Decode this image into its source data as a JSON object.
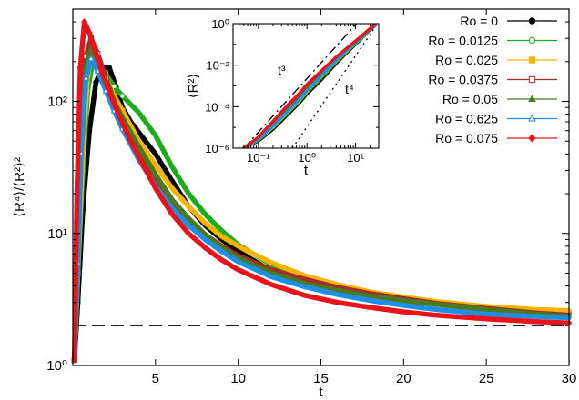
{
  "chart_data": [
    {
      "type": "line",
      "ylabel": "⟨R⁴⟩/⟨R²⟩²",
      "xlabel": "t",
      "xlim": [
        0,
        30
      ],
      "ylim": [
        1,
        500
      ],
      "yscale": "log",
      "xticks": [
        5,
        10,
        15,
        20,
        25,
        30
      ],
      "xtick_labels": [
        "5",
        "10",
        "15",
        "20",
        "25",
        "30"
      ],
      "yticks": [
        1,
        10,
        100
      ],
      "ytick_labels": [
        "10⁰",
        "10¹",
        "10²"
      ],
      "grid": false,
      "legend_placement": "top-right",
      "reference_line": {
        "y": 2,
        "style": "dashed"
      },
      "series": [
        {
          "name": "Ro = 0",
          "color": "#000000",
          "marker": "filled-circle",
          "x": [
            0.1,
            0.3,
            0.6,
            1.0,
            1.4,
            1.8,
            2.2,
            2.6,
            3.0,
            3.5,
            4.0,
            4.5,
            5,
            6,
            7,
            8,
            9,
            10,
            12,
            14,
            16,
            18,
            20,
            22,
            25,
            28,
            30
          ],
          "y": [
            1.1,
            3,
            15,
            60,
            140,
            180,
            180,
            130,
            90,
            70,
            58,
            48,
            40,
            25,
            16,
            11.5,
            9,
            7.3,
            5.2,
            4.4,
            3.9,
            3.5,
            3.2,
            2.95,
            2.7,
            2.55,
            2.5
          ]
        },
        {
          "name": "Ro = 0.0125",
          "color": "#1aaf1a",
          "marker": "open-circle",
          "x": [
            0.1,
            0.3,
            0.6,
            0.9,
            1.2,
            1.6,
            2.0,
            2.5,
            3.0,
            3.5,
            4,
            5,
            6,
            7,
            8,
            9,
            10,
            12,
            14,
            16,
            18,
            20,
            22,
            25,
            28,
            30
          ],
          "y": [
            1.1,
            5,
            30,
            120,
            200,
            190,
            160,
            130,
            110,
            95,
            82,
            55,
            32,
            20,
            14,
            10.5,
            8.2,
            5.8,
            4.6,
            3.9,
            3.5,
            3.2,
            3.0,
            2.75,
            2.6,
            2.55
          ]
        },
        {
          "name": "Ro = 0.025",
          "color": "#f5b400",
          "marker": "filled-square",
          "x": [
            0.1,
            0.3,
            0.6,
            0.9,
            1.2,
            1.6,
            2.0,
            2.5,
            3.0,
            4,
            5,
            6,
            7,
            8,
            9,
            10,
            12,
            14,
            16,
            18,
            20,
            22,
            25,
            28,
            30
          ],
          "y": [
            1.1,
            5,
            40,
            160,
            240,
            200,
            150,
            110,
            85,
            50,
            33,
            22,
            16,
            12,
            9.5,
            8,
            6,
            4.8,
            4.1,
            3.6,
            3.3,
            3.05,
            2.8,
            2.65,
            2.6
          ]
        },
        {
          "name": "Ro = 0.0375",
          "color": "#a52a2a",
          "marker": "open-square",
          "x": [
            0.1,
            0.3,
            0.5,
            0.8,
            1.1,
            1.5,
            2.0,
            2.5,
            3.0,
            4,
            5,
            6,
            7,
            8,
            9,
            10,
            12,
            14,
            16,
            18,
            20,
            22,
            25,
            28,
            30
          ],
          "y": [
            1.1,
            8,
            60,
            220,
            300,
            230,
            150,
            100,
            72,
            40,
            25,
            17,
            12.5,
            9.8,
            8,
            6.8,
            5.3,
            4.5,
            3.9,
            3.5,
            3.2,
            2.95,
            2.7,
            2.5,
            2.4
          ]
        },
        {
          "name": "Ro = 0.05",
          "color": "#4b7a1e",
          "marker": "filled-triangle",
          "x": [
            0.1,
            0.3,
            0.5,
            0.8,
            1.1,
            1.5,
            2.0,
            2.5,
            3.0,
            4,
            5,
            6,
            7,
            8,
            9,
            10,
            12,
            14,
            16,
            18,
            20,
            22,
            25,
            28,
            30
          ],
          "y": [
            1.1,
            6,
            45,
            180,
            250,
            200,
            140,
            100,
            75,
            45,
            28,
            18,
            13,
            9.8,
            7.8,
            6.5,
            5,
            4.2,
            3.7,
            3.35,
            3.1,
            2.9,
            2.65,
            2.45,
            2.35
          ]
        },
        {
          "name": "Ro = 0.625",
          "color": "#1e8fe6",
          "marker": "open-triangle",
          "x": [
            0.1,
            0.3,
            0.5,
            0.8,
            1.1,
            1.5,
            2.0,
            2.5,
            3.0,
            4,
            5,
            6,
            7,
            8,
            9,
            10,
            12,
            14,
            16,
            18,
            20,
            22,
            25,
            28,
            30
          ],
          "y": [
            1.1,
            6,
            40,
            150,
            210,
            170,
            120,
            85,
            62,
            36,
            23,
            15.5,
            11.5,
            9,
            7.3,
            6.1,
            4.7,
            3.95,
            3.45,
            3.1,
            2.85,
            2.65,
            2.45,
            2.35,
            2.3
          ]
        },
        {
          "name": "Ro = 0.075",
          "color": "#e8141a",
          "marker": "filled-diamond",
          "x": [
            0.1,
            0.25,
            0.45,
            0.7,
            1.0,
            1.4,
            1.8,
            2.3,
            2.8,
            3.5,
            4,
            5,
            6,
            7,
            8,
            9,
            10,
            12,
            14,
            16,
            18,
            20,
            22,
            25,
            28,
            30
          ],
          "y": [
            1.1,
            20,
            180,
            400,
            330,
            230,
            160,
            110,
            78,
            50,
            38,
            22,
            14,
            10,
            7.8,
            6.3,
            5.3,
            4.1,
            3.4,
            3.0,
            2.75,
            2.55,
            2.4,
            2.25,
            2.15,
            2.1
          ]
        }
      ]
    },
    {
      "type": "line",
      "inset": true,
      "ylabel": "⟨R²⟩",
      "xlabel": "t",
      "xscale": "log",
      "yscale": "log",
      "xlim": [
        0.03,
        30
      ],
      "ylim": [
        1e-06,
        1
      ],
      "xticks": [
        0.1,
        1,
        10
      ],
      "xtick_labels": [
        "10⁻¹",
        "10⁰",
        "10¹"
      ],
      "yticks": [
        1e-06,
        0.0001,
        0.01,
        1
      ],
      "ytick_labels": [
        "10⁻⁶",
        "10⁻⁴",
        "10⁻²",
        "10⁰"
      ],
      "annotations": [
        "t³",
        "t⁴"
      ],
      "reference_lines": [
        {
          "label": "t³",
          "style": "dash-dot",
          "x": [
            0.05,
            12
          ],
          "y": [
            1e-06,
            1.4
          ]
        },
        {
          "label": "t⁴",
          "style": "dotted",
          "x": [
            0.5,
            30
          ],
          "y": [
            1e-06,
            1.2
          ]
        }
      ],
      "series": [
        {
          "name": "Ro = 0",
          "color": "#000000",
          "x": [
            0.05,
            0.1,
            0.2,
            0.4,
            0.7,
            1,
            2,
            4,
            7,
            12,
            20,
            25
          ],
          "y": [
            1e-06,
            2.2e-06,
            8e-06,
            4e-05,
            0.00015,
            0.0004,
            0.002,
            0.012,
            0.045,
            0.15,
            0.5,
            0.8
          ]
        },
        {
          "name": "Ro = 0.0125",
          "color": "#1aaf1a",
          "x": [
            0.05,
            0.1,
            0.2,
            0.4,
            0.7,
            1,
            2,
            4,
            7,
            12,
            20,
            25
          ],
          "y": [
            1e-06,
            2.4e-06,
            9.5e-06,
            4.8e-05,
            0.00018,
            0.00048,
            0.0025,
            0.014,
            0.05,
            0.16,
            0.52,
            0.85
          ]
        },
        {
          "name": "Ro = 0.025",
          "color": "#f5b400",
          "x": [
            0.05,
            0.1,
            0.2,
            0.4,
            0.7,
            1,
            2,
            4,
            7,
            12,
            20,
            25
          ],
          "y": [
            1e-06,
            2.6e-06,
            1e-05,
            5.5e-05,
            0.0002,
            0.00055,
            0.003,
            0.016,
            0.055,
            0.17,
            0.55,
            0.88
          ]
        },
        {
          "name": "Ro = 0.0375",
          "color": "#a52a2a",
          "x": [
            0.05,
            0.1,
            0.2,
            0.4,
            0.7,
            1,
            2,
            4,
            7,
            12,
            20,
            25
          ],
          "y": [
            1e-06,
            3e-06,
            1.4e-05,
            8e-05,
            0.0003,
            0.0008,
            0.004,
            0.02,
            0.065,
            0.19,
            0.58,
            0.9
          ]
        },
        {
          "name": "Ro = 0.05",
          "color": "#4b7a1e",
          "x": [
            0.05,
            0.1,
            0.2,
            0.4,
            0.7,
            1,
            2,
            4,
            7,
            12,
            20,
            25
          ],
          "y": [
            1e-06,
            2.8e-06,
            1.2e-05,
            7e-05,
            0.00026,
            0.0007,
            0.0035,
            0.018,
            0.06,
            0.18,
            0.56,
            0.9
          ]
        },
        {
          "name": "Ro = 0.625",
          "color": "#1e8fe6",
          "x": [
            0.05,
            0.1,
            0.2,
            0.4,
            0.7,
            1,
            2,
            4,
            7,
            12,
            20,
            25
          ],
          "y": [
            1e-06,
            2.7e-06,
            1.1e-05,
            6e-05,
            0.00022,
            0.0006,
            0.0032,
            0.017,
            0.058,
            0.175,
            0.55,
            0.88
          ]
        },
        {
          "name": "Ro = 0.075",
          "color": "#e8141a",
          "x": [
            0.05,
            0.1,
            0.2,
            0.4,
            0.7,
            1,
            2,
            4,
            7,
            12,
            20,
            25
          ],
          "y": [
            1e-06,
            3.5e-06,
            2e-05,
            0.00012,
            0.00045,
            0.0012,
            0.0055,
            0.025,
            0.075,
            0.21,
            0.6,
            0.95
          ]
        }
      ]
    }
  ]
}
